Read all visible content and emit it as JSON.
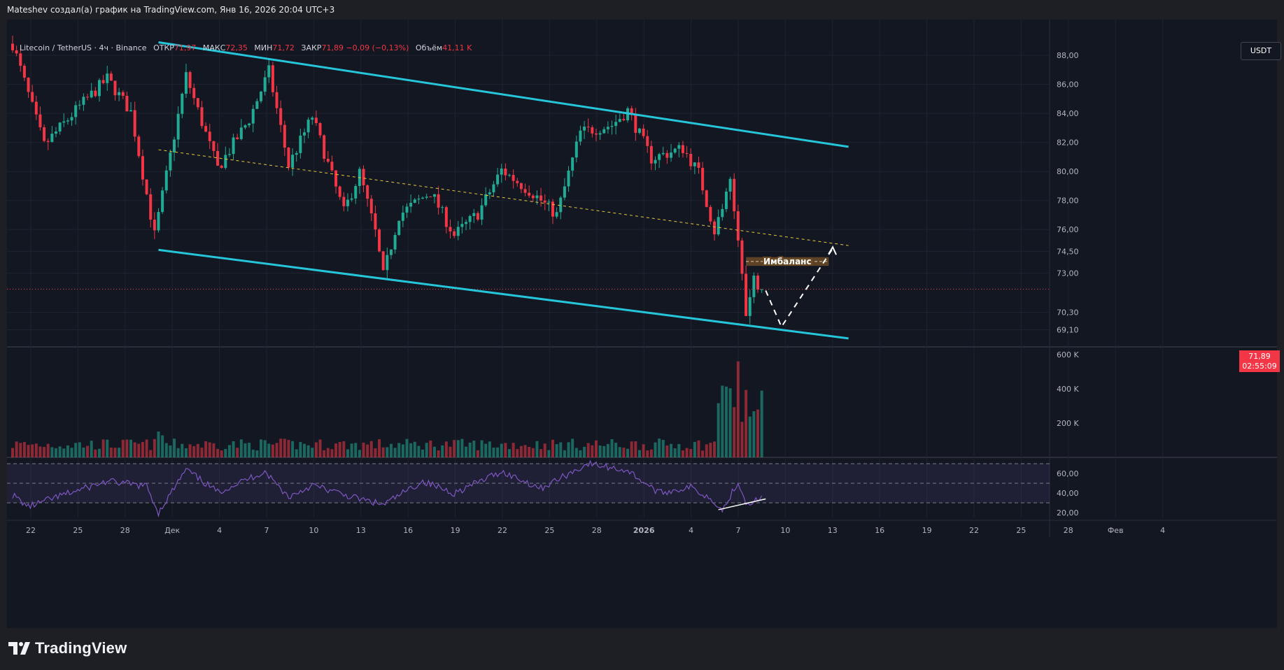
{
  "header": {
    "attribution": "Mateshev создал(а) график на TradingView.com, Янв 16, 2026 20:04 UTC+3"
  },
  "legend": {
    "symbol": "Litecoin / TetherUS · 4ч · Binance",
    "open_label": "ОТКР",
    "open_value": "71,97",
    "high_label": "МАКС",
    "high_value": "72,35",
    "low_label": "МИН",
    "low_value": "71,72",
    "close_label": "ЗАКР",
    "close_value": "71,89",
    "change_value": "−0,09 (−0,13%)",
    "volume_label": "Объём",
    "volume_value": "41,11 K"
  },
  "currency_button": "USDT",
  "last_price": {
    "price": "71,89",
    "countdown": "02:55:09"
  },
  "annotation": {
    "imbalance_label": "Имбаланс"
  },
  "footer": {
    "brand": "TradingView"
  },
  "colors": {
    "background": "#131722",
    "up": "#22ab94",
    "down": "#f23645",
    "channel": "#26c6da",
    "midline": "#e6c93c",
    "rsi": "#7e57c2",
    "imbalance": "#6b4a26"
  },
  "chart_data": [
    {
      "type": "candlestick",
      "title": "",
      "price_axis_ticks": [
        "88,00",
        "86,00",
        "84,00",
        "82,00",
        "80,00",
        "78,00",
        "76,00",
        "74,50",
        "73,00",
        "70,30",
        "69,10"
      ],
      "price_axis_values": [
        88.0,
        86.0,
        84.0,
        82.0,
        80.0,
        78.0,
        76.0,
        74.5,
        73.0,
        70.3,
        69.1
      ],
      "ylim": [
        68.4,
        89.5
      ],
      "time_axis_ticks": [
        "22",
        "25",
        "28",
        "Дек",
        "4",
        "7",
        "10",
        "13",
        "16",
        "19",
        "22",
        "25",
        "28",
        "2026",
        "4",
        "7",
        "10",
        "13",
        "16",
        "19",
        "22",
        "25",
        "28",
        "Фев",
        "4"
      ],
      "price_path": [
        {
          "t": 0,
          "p": 88.8
        },
        {
          "t": 8,
          "p": 81.8
        },
        {
          "t": 16,
          "p": 84.2
        },
        {
          "t": 24,
          "p": 86.4
        },
        {
          "t": 30,
          "p": 84.1
        },
        {
          "t": 36,
          "p": 75.6
        },
        {
          "t": 44,
          "p": 86.6
        },
        {
          "t": 52,
          "p": 80.2
        },
        {
          "t": 60,
          "p": 83.6
        },
        {
          "t": 65,
          "p": 86.9
        },
        {
          "t": 70,
          "p": 80.4
        },
        {
          "t": 76,
          "p": 83.8
        },
        {
          "t": 84,
          "p": 77.2
        },
        {
          "t": 88,
          "p": 79.9
        },
        {
          "t": 92,
          "p": 75.8
        },
        {
          "t": 94,
          "p": 72.8
        },
        {
          "t": 98,
          "p": 77.0
        },
        {
          "t": 106,
          "p": 78.6
        },
        {
          "t": 112,
          "p": 75.6
        },
        {
          "t": 118,
          "p": 77.1
        },
        {
          "t": 124,
          "p": 80.1
        },
        {
          "t": 132,
          "p": 78.5
        },
        {
          "t": 138,
          "p": 77.0
        },
        {
          "t": 144,
          "p": 82.7
        },
        {
          "t": 152,
          "p": 83.2
        },
        {
          "t": 156,
          "p": 84.2
        },
        {
          "t": 162,
          "p": 80.9
        },
        {
          "t": 170,
          "p": 81.6
        },
        {
          "t": 174,
          "p": 79.9
        },
        {
          "t": 178,
          "p": 75.9
        },
        {
          "t": 182,
          "p": 79.1
        },
        {
          "t": 185,
          "p": 73.4
        },
        {
          "t": 186,
          "p": 70.0
        },
        {
          "t": 188,
          "p": 72.6
        },
        {
          "t": 190,
          "p": 71.89
        }
      ],
      "channel_upper": [
        {
          "t": 37,
          "p": 88.9
        },
        {
          "t": 212,
          "p": 81.7
        }
      ],
      "channel_lower": [
        {
          "t": 37,
          "p": 74.6
        },
        {
          "t": 212,
          "p": 68.5
        }
      ],
      "channel_midline": [
        {
          "t": 37,
          "p": 81.5
        },
        {
          "t": 212,
          "p": 74.9
        }
      ],
      "imbalance_zone": {
        "t_start": 186,
        "t_end": 207,
        "p_low": 73.5,
        "p_high": 74.1
      },
      "projection": [
        {
          "t": 191,
          "p": 71.8
        },
        {
          "t": 195,
          "p": 69.3
        },
        {
          "t": 208,
          "p": 74.7
        }
      ],
      "last_price": 71.89
    },
    {
      "type": "bar",
      "title": "Volume",
      "volume_axis_ticks": [
        "600 K",
        "400 K",
        "200 K"
      ],
      "volume_axis_values": [
        600000,
        400000,
        200000
      ],
      "ylim": [
        0,
        620000
      ],
      "peak_volume": 560000
    },
    {
      "type": "line",
      "title": "RSI",
      "rsi_axis_ticks": [
        "60,00",
        "40,00",
        "20,00"
      ],
      "rsi_axis_values": [
        60,
        40,
        20
      ],
      "bands": [
        70,
        50,
        30
      ],
      "ylim": [
        15,
        75
      ],
      "rsi_path": [
        {
          "t": 0,
          "p": 38
        },
        {
          "t": 4,
          "p": 26
        },
        {
          "t": 12,
          "p": 37
        },
        {
          "t": 24,
          "p": 52
        },
        {
          "t": 34,
          "p": 47
        },
        {
          "t": 37,
          "p": 20
        },
        {
          "t": 44,
          "p": 64
        },
        {
          "t": 52,
          "p": 41
        },
        {
          "t": 64,
          "p": 62
        },
        {
          "t": 70,
          "p": 36
        },
        {
          "t": 76,
          "p": 48
        },
        {
          "t": 86,
          "p": 36
        },
        {
          "t": 94,
          "p": 28
        },
        {
          "t": 104,
          "p": 52
        },
        {
          "t": 112,
          "p": 40
        },
        {
          "t": 124,
          "p": 62
        },
        {
          "t": 134,
          "p": 45
        },
        {
          "t": 146,
          "p": 70
        },
        {
          "t": 156,
          "p": 63
        },
        {
          "t": 164,
          "p": 40
        },
        {
          "t": 172,
          "p": 46
        },
        {
          "t": 178,
          "p": 32
        },
        {
          "t": 180,
          "p": 22
        },
        {
          "t": 184,
          "p": 52
        },
        {
          "t": 186,
          "p": 30
        },
        {
          "t": 190,
          "p": 34
        }
      ],
      "divergence_line": [
        {
          "t": 179,
          "p": 23
        },
        {
          "t": 191,
          "p": 34
        }
      ]
    }
  ]
}
